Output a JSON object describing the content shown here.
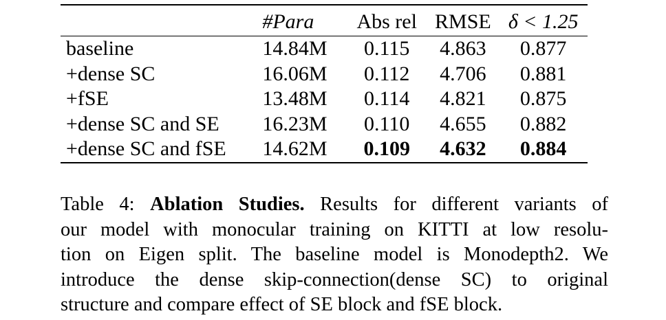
{
  "table": {
    "headers": {
      "variant": "",
      "para": "#Para",
      "abs_rel": "Abs rel",
      "rmse": "RMSE",
      "delta": "δ < 1.25"
    },
    "rows": [
      {
        "variant": "baseline",
        "para": "14.84M",
        "abs_rel": "0.115",
        "rmse": "4.863",
        "delta": "0.877"
      },
      {
        "variant": "+dense SC",
        "para": "16.06M",
        "abs_rel": "0.112",
        "rmse": "4.706",
        "delta": "0.881"
      },
      {
        "variant": "+fSE",
        "para": "13.48M",
        "abs_rel": "0.114",
        "rmse": "4.821",
        "delta": "0.875"
      },
      {
        "variant": "+dense SC and SE",
        "para": "16.23M",
        "abs_rel": "0.110",
        "rmse": "4.655",
        "delta": "0.882"
      },
      {
        "variant": "+dense SC and fSE",
        "para": "14.62M",
        "abs_rel": "0.109",
        "rmse": "4.632",
        "delta": "0.884"
      }
    ],
    "bold_row_index": 4
  },
  "caption": {
    "label": "Table 4:",
    "title": "Ablation Studies.",
    "lines": [
      "Results for different variants of",
      "our model with monocular training on KITTI at low resolu-",
      "tion on Eigen split. The baseline model is Monodepth2. We",
      "introduce the dense skip-connection(dense SC) to original",
      "structure and compare effect of SE block and fSE block."
    ]
  }
}
